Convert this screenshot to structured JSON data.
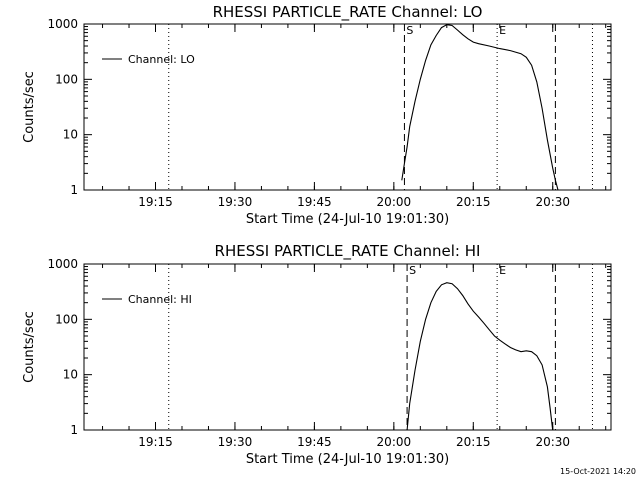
{
  "chart_data": [
    {
      "type": "line",
      "title": "RHESSI PARTICLE_RATE Channel: LO",
      "xlabel": "Start Time (24-Jul-10 19:01:30)",
      "ylabel": "Counts/sec",
      "y_scale": "log",
      "xlim": [
        "19:01:30",
        "20:41:00"
      ],
      "ylim": [
        1,
        1000
      ],
      "x_ticks": [
        "19:15",
        "19:30",
        "19:45",
        "20:00",
        "20:15",
        "20:30"
      ],
      "y_ticks": [
        "1",
        "10",
        "100",
        "1000"
      ],
      "legend_placement": "top-left",
      "series": [
        {
          "name": "Channel: LO",
          "x": [
            "20:01:30",
            "20:02:00",
            "20:02:30",
            "20:03:00",
            "20:04:00",
            "20:05:00",
            "20:06:00",
            "20:07:00",
            "20:08:00",
            "20:09:00",
            "20:10:00",
            "20:11:00",
            "20:12:00",
            "20:13:00",
            "20:14:00",
            "20:15:00",
            "20:16:00",
            "20:18:00",
            "20:20:00",
            "20:22:00",
            "20:24:00",
            "20:25:00",
            "20:26:00",
            "20:27:00",
            "20:28:00",
            "20:29:00",
            "20:30:00",
            "20:30:30",
            "20:31:00"
          ],
          "values": [
            1.5,
            3,
            6,
            14,
            40,
            100,
            220,
            420,
            620,
            860,
            970,
            940,
            780,
            640,
            540,
            470,
            440,
            400,
            360,
            330,
            290,
            250,
            180,
            90,
            30,
            8,
            2.5,
            1.5,
            1
          ]
        }
      ],
      "vlines": [
        {
          "x": "19:17:30",
          "style": "dotted",
          "label": ""
        },
        {
          "x": "20:02:00",
          "style": "dashed",
          "label": "S"
        },
        {
          "x": "20:19:30",
          "style": "dotted",
          "label": "E"
        },
        {
          "x": "20:30:30",
          "style": "dashed",
          "label": ""
        },
        {
          "x": "20:37:30",
          "style": "dotted",
          "label": ""
        }
      ]
    },
    {
      "type": "line",
      "title": "RHESSI PARTICLE_RATE Channel: HI",
      "xlabel": "Start Time (24-Jul-10 19:01:30)",
      "ylabel": "Counts/sec",
      "y_scale": "log",
      "xlim": [
        "19:01:30",
        "20:41:00"
      ],
      "ylim": [
        1,
        1000
      ],
      "x_ticks": [
        "19:15",
        "19:30",
        "19:45",
        "20:00",
        "20:15",
        "20:30"
      ],
      "y_ticks": [
        "1",
        "10",
        "100",
        "1000"
      ],
      "legend_placement": "top-left",
      "series": [
        {
          "name": "Channel: HI",
          "x": [
            "20:02:30",
            "20:03:00",
            "20:04:00",
            "20:05:00",
            "20:06:00",
            "20:07:00",
            "20:08:00",
            "20:09:00",
            "20:10:00",
            "20:11:00",
            "20:12:00",
            "20:13:00",
            "20:14:00",
            "20:15:00",
            "20:16:00",
            "20:17:00",
            "20:18:00",
            "20:19:00",
            "20:20:00",
            "20:21:00",
            "20:22:00",
            "20:23:00",
            "20:24:00",
            "20:25:00",
            "20:26:00",
            "20:27:00",
            "20:28:00",
            "20:29:00",
            "20:29:30",
            "20:30:00"
          ],
          "values": [
            1,
            3,
            12,
            40,
            100,
            200,
            320,
            420,
            460,
            440,
            360,
            270,
            190,
            140,
            110,
            85,
            65,
            50,
            42,
            36,
            31,
            28,
            26,
            27,
            26,
            22,
            15,
            6,
            2.5,
            1
          ]
        }
      ],
      "vlines": [
        {
          "x": "19:17:30",
          "style": "dotted",
          "label": ""
        },
        {
          "x": "20:02:30",
          "style": "dashed",
          "label": "S"
        },
        {
          "x": "20:19:30",
          "style": "dotted",
          "label": "E"
        },
        {
          "x": "20:30:30",
          "style": "dashed",
          "label": ""
        },
        {
          "x": "20:37:30",
          "style": "dotted",
          "label": ""
        }
      ]
    }
  ],
  "footer": {
    "timestamp": "15-Oct-2021 14:20"
  }
}
